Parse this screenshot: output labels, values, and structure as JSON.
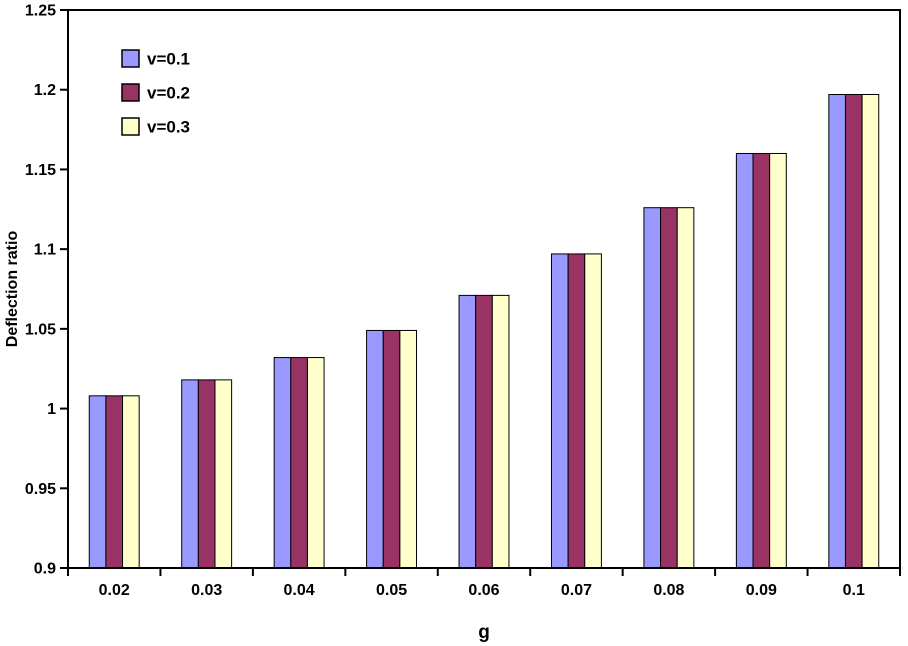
{
  "chart_data": {
    "type": "bar",
    "title": "",
    "xlabel": "g",
    "ylabel": "Deflection ratio",
    "ylim": [
      0.9,
      1.25
    ],
    "yticks": [
      0.9,
      0.95,
      1,
      1.05,
      1.1,
      1.15,
      1.2,
      1.25
    ],
    "ytick_labels": [
      "0.9",
      "0.95",
      "1",
      "1.05",
      "1.1",
      "1.15",
      "1.2",
      "1.25"
    ],
    "categories": [
      "0.02",
      "0.03",
      "0.04",
      "0.05",
      "0.06",
      "0.07",
      "0.08",
      "0.09",
      "0.1"
    ],
    "series": [
      {
        "name": "v=0.1",
        "color": "#9999FF",
        "values": [
          1.008,
          1.018,
          1.032,
          1.049,
          1.071,
          1.097,
          1.126,
          1.16,
          1.197
        ]
      },
      {
        "name": "v=0.2",
        "color": "#993366",
        "values": [
          1.008,
          1.018,
          1.032,
          1.049,
          1.071,
          1.097,
          1.126,
          1.16,
          1.197
        ]
      },
      {
        "name": "v=0.3",
        "color": "#FFFFCC",
        "values": [
          1.008,
          1.018,
          1.032,
          1.049,
          1.071,
          1.097,
          1.126,
          1.16,
          1.197
        ]
      }
    ],
    "legend_position": "top-left-inside",
    "grid": false,
    "bar_border_color": "#000000",
    "axis_color": "#000000",
    "background_color": "#FFFFFF"
  }
}
